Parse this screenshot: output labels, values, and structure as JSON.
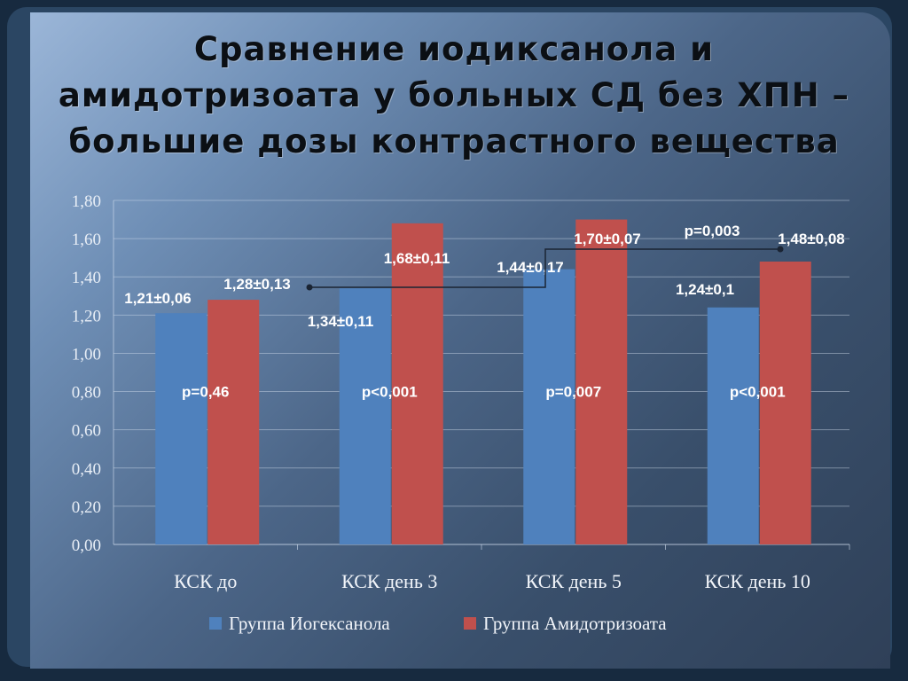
{
  "slide": {
    "title_lines": [
      "Сравнение иодиксанола и",
      "амидотризоата у больных СД без ХПН –",
      "большие дозы контрастного вещества"
    ]
  },
  "chart_data": {
    "type": "bar",
    "categories": [
      "КСК до",
      "КСК день 3",
      "КСК день 5",
      "КСК день 10"
    ],
    "series": [
      {
        "name": "Группа Иогексанола",
        "color": "#4f81bd",
        "values": [
          1.21,
          1.34,
          1.44,
          1.24
        ],
        "labels": [
          "1,21±0,06",
          "1,34±0,11",
          "1,44±0,17",
          "1,24±0,1"
        ]
      },
      {
        "name": "Группа Амидотризоата",
        "color": "#c0504d",
        "values": [
          1.28,
          1.68,
          1.7,
          1.48
        ],
        "labels": [
          "1,28±0,13",
          "1,68±0,11",
          "1,70±0,07",
          "1,48±0,08"
        ]
      }
    ],
    "pvalues": [
      "p=0,46",
      "p<0,001",
      "p=0,007",
      "p<0,001"
    ],
    "bracket": {
      "label": "p=0,003",
      "from": "КСК до",
      "to": "КСК день 10",
      "series": "Группа Амидотризоата"
    },
    "yticks": [
      "0,00",
      "0,20",
      "0,40",
      "0,60",
      "0,80",
      "1,00",
      "1,20",
      "1,40",
      "1,60",
      "1,80"
    ],
    "ylim": [
      0,
      1.8
    ],
    "grid": true,
    "legend": "bottom"
  }
}
